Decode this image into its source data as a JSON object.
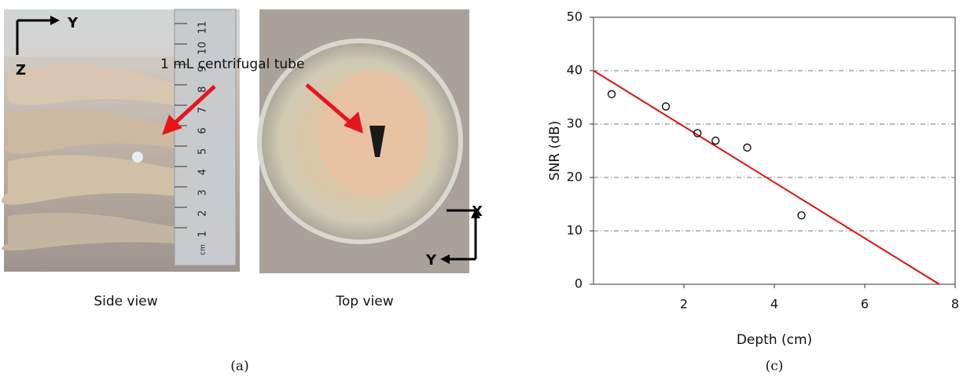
{
  "figure": {
    "side_view": {
      "caption": "Side view",
      "axis_right": "Y",
      "axis_down": "Z",
      "ruler_numbers": [
        "1",
        "2",
        "3",
        "4",
        "5",
        "6",
        "7",
        "8",
        "9",
        "10",
        "11"
      ],
      "ruler_unit": "cm"
    },
    "top_view": {
      "caption": "Top view",
      "axis_up": "X",
      "axis_left": "Y"
    },
    "annotation": "1 mL centrifugal tube",
    "panel_a_label": "(a)",
    "panel_c_label": "(c)"
  },
  "chart_data": {
    "type": "scatter",
    "x_label": "Depth (cm)",
    "y_label": "SNR (dB)",
    "points": {
      "x": [
        0.4,
        1.6,
        2.3,
        2.7,
        3.4,
        4.6
      ],
      "values": [
        35.6,
        33.3,
        28.3,
        26.9,
        25.6,
        12.9
      ],
      "color": "#000000"
    },
    "fit_line": {
      "x": [
        0,
        7.65
      ],
      "values": [
        40,
        0
      ],
      "color": "#e01010"
    },
    "xlim": [
      0,
      8
    ],
    "xticks": [
      2,
      4,
      6,
      8
    ],
    "ylim": [
      0,
      50
    ],
    "yticks": [
      0,
      10,
      20,
      30,
      40,
      50
    ],
    "grid": true
  }
}
